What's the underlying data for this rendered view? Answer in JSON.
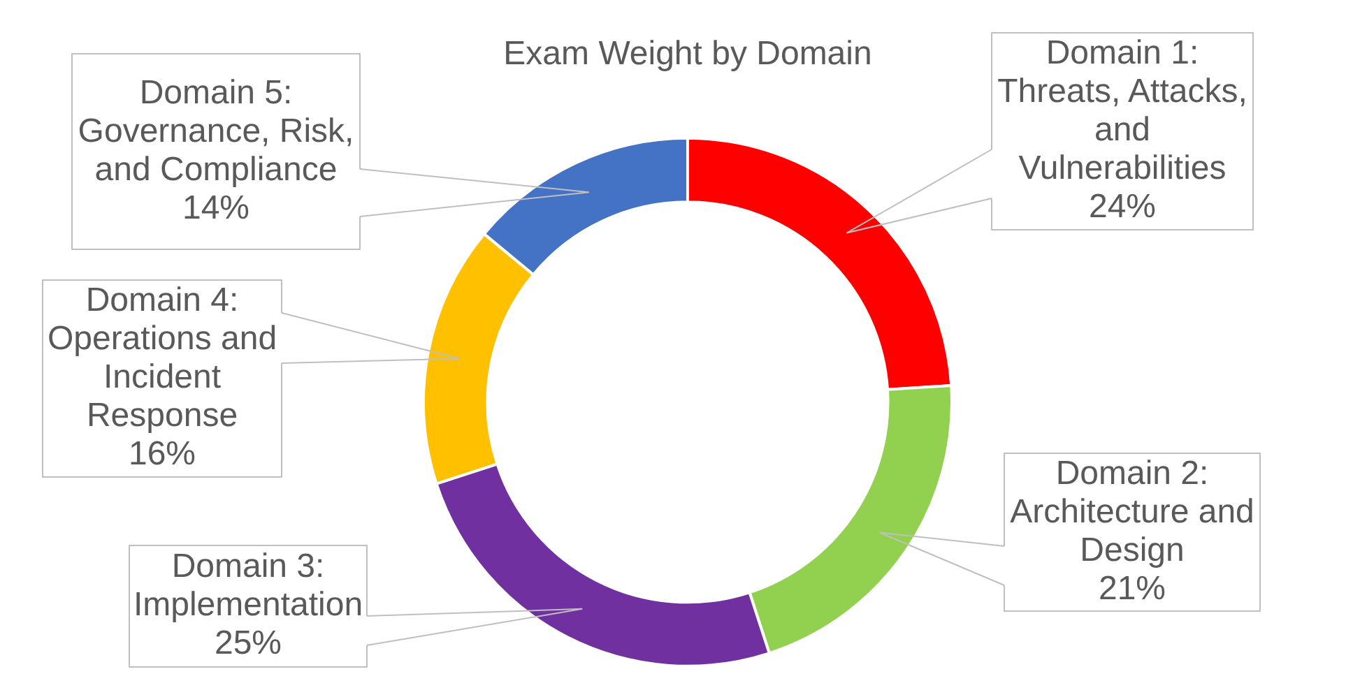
{
  "chart_data": {
    "type": "donut",
    "title": "Exam Weight by Domain",
    "categories": [
      "Domain 1: Threats, Attacks, and Vulnerabilities",
      "Domain 2: Architecture and Design",
      "Domain 3: Implementation",
      "Domain 4: Operations and Incident Response",
      "Domain 5: Governance, Risk, and Compliance"
    ],
    "values": [
      24,
      21,
      25,
      16,
      14
    ],
    "colors": [
      "#ff0000",
      "#92d050",
      "#7030a0",
      "#ffc000",
      "#4472c4"
    ],
    "value_labels": [
      "24%",
      "21%",
      "25%",
      "16%",
      "14%"
    ]
  }
}
